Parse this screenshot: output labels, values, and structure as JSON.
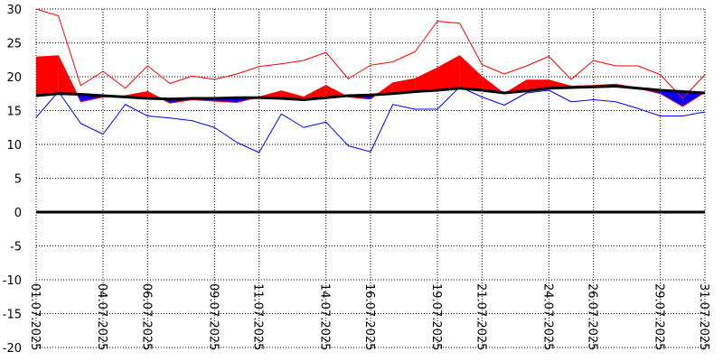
{
  "chart_data": {
    "type": "line",
    "x": [
      "01.07.2025",
      "02.07.2025",
      "03.07.2025",
      "04.07.2025",
      "05.07.2025",
      "06.07.2025",
      "07.07.2025",
      "08.07.2025",
      "09.07.2025",
      "10.07.2025",
      "11.07.2025",
      "12.07.2025",
      "13.07.2025",
      "14.07.2025",
      "15.07.2025",
      "16.07.2025",
      "17.07.2025",
      "18.07.2025",
      "19.07.2025",
      "20.07.2025",
      "21.07.2025",
      "22.07.2025",
      "23.07.2025",
      "24.07.2025",
      "25.07.2025",
      "26.07.2025",
      "27.07.2025",
      "28.07.2025",
      "29.07.2025",
      "30.07.2025",
      "31.07.2025"
    ],
    "x_tick_labels": [
      "01.07.2025",
      "04.07.2025",
      "06.07.2025",
      "09.07.2025",
      "11.07.2025",
      "14.07.2025",
      "16.07.2025",
      "19.07.2025",
      "21.07.2025",
      "24.07.2025",
      "26.07.2025",
      "29.07.2025",
      "31.07.2025"
    ],
    "x_tick_indices": [
      0,
      3,
      5,
      8,
      10,
      13,
      15,
      18,
      20,
      23,
      25,
      28,
      30
    ],
    "y_ticks": [
      -20,
      -15,
      -10,
      -5,
      0,
      5,
      10,
      15,
      20,
      25,
      30
    ],
    "ylim": [
      -20,
      30
    ],
    "grid": true,
    "series": [
      {
        "role": "max",
        "color": "#ff0000",
        "values": [
          30.0,
          29.0,
          18.7,
          20.8,
          18.3,
          21.6,
          19.0,
          20.1,
          19.6,
          20.4,
          21.5,
          21.9,
          22.4,
          23.6,
          19.7,
          21.7,
          22.2,
          23.7,
          28.2,
          27.9,
          21.8,
          20.4,
          21.6,
          23.0,
          19.6,
          22.4,
          21.6,
          21.6,
          20.3,
          16.8,
          20.3
        ]
      },
      {
        "role": "mean",
        "color": "#ff0000",
        "values": [
          22.9,
          23.1,
          16.3,
          17.0,
          17.2,
          17.8,
          16.1,
          16.6,
          16.4,
          16.2,
          17.0,
          17.9,
          17.0,
          18.7,
          17.0,
          16.7,
          19.1,
          19.7,
          21.3,
          23.1,
          20.0,
          17.5,
          19.5,
          19.5,
          18.6,
          18.7,
          18.9,
          18.3,
          17.5,
          15.6,
          17.7
        ]
      },
      {
        "role": "min",
        "color": "#0000ff",
        "values": [
          14.0,
          17.8,
          13.1,
          11.5,
          15.9,
          14.2,
          13.9,
          13.5,
          12.5,
          10.3,
          8.8,
          14.5,
          12.5,
          13.3,
          9.8,
          8.9,
          15.9,
          15.2,
          15.2,
          18.5,
          17.0,
          15.8,
          17.6,
          18.0,
          16.3,
          16.6,
          16.3,
          15.3,
          14.2,
          14.2,
          14.8
        ]
      },
      {
        "role": "normal",
        "color": "#000000",
        "values": [
          17.2,
          17.5,
          17.4,
          17.2,
          17.0,
          16.8,
          16.7,
          16.8,
          16.8,
          16.9,
          16.9,
          16.8,
          16.6,
          16.9,
          17.2,
          17.3,
          17.5,
          17.8,
          18.0,
          18.3,
          18.0,
          17.6,
          17.9,
          18.3,
          18.4,
          18.5,
          18.6,
          18.3,
          18.0,
          17.8,
          17.6
        ]
      }
    ],
    "fill_colors": {
      "above_normal": "#ff0000",
      "below_normal": "#0000ff"
    }
  }
}
